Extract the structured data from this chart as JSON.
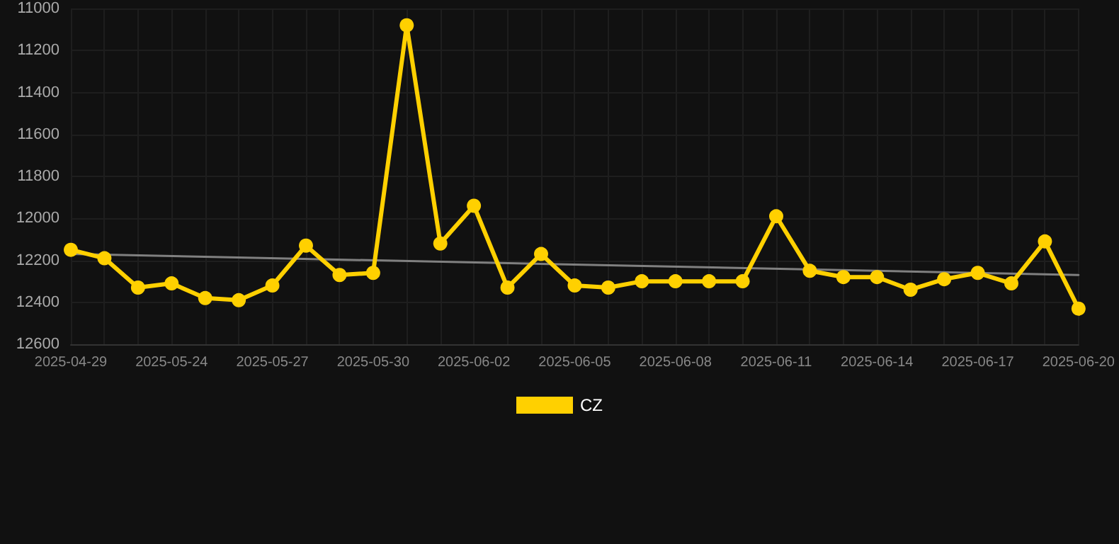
{
  "chart_data": {
    "type": "line",
    "categories": [
      "2025-04-29",
      null,
      null,
      "2025-05-24",
      null,
      null,
      "2025-05-27",
      null,
      null,
      "2025-05-30",
      null,
      null,
      "2025-06-02",
      null,
      null,
      "2025-06-05",
      null,
      null,
      "2025-06-08",
      null,
      null,
      "2025-06-11",
      null,
      null,
      "2025-06-14",
      null,
      null,
      "2025-06-17",
      null,
      null,
      "2025-06-20"
    ],
    "series": [
      {
        "name": "CZ",
        "color": "#ffd000",
        "marker": "circle",
        "values": [
          12150,
          12190,
          12330,
          12310,
          12380,
          12390,
          12320,
          12130,
          12270,
          12260,
          11080,
          12120,
          11940,
          12330,
          12170,
          12320,
          12330,
          12300,
          12300,
          12300,
          12300,
          11990,
          12250,
          12280,
          12280,
          12340,
          12290,
          12260,
          12310,
          12110,
          12430
        ]
      },
      {
        "type": "line",
        "color": "#808080",
        "marker": "none",
        "values": [
          12170,
          null,
          null,
          null,
          null,
          null,
          null,
          null,
          null,
          null,
          null,
          null,
          null,
          null,
          null,
          null,
          null,
          null,
          null,
          null,
          null,
          null,
          null,
          null,
          null,
          null,
          null,
          null,
          null,
          null,
          12270
        ]
      }
    ],
    "ylim": [
      12600,
      11000
    ],
    "yticks": [
      11000,
      11200,
      11400,
      11600,
      11800,
      12000,
      12200,
      12400,
      12600
    ],
    "grid": true,
    "legend": "bottom"
  }
}
